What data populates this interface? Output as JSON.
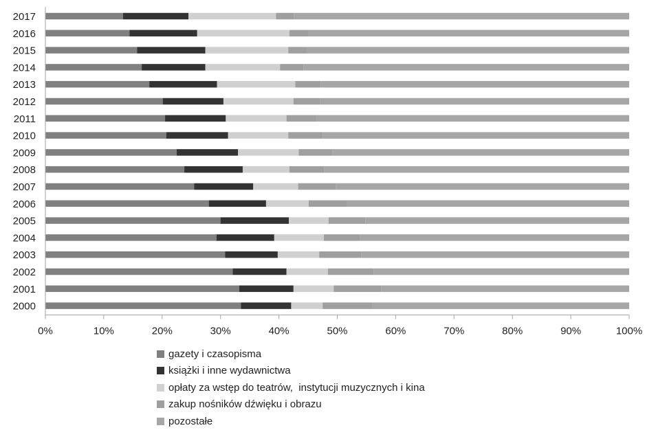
{
  "chart_data": {
    "type": "bar",
    "orientation": "horizontal",
    "stacked": "percent",
    "categories": [
      "2017",
      "2016",
      "2015",
      "2014",
      "2013",
      "2012",
      "2011",
      "2010",
      "2009",
      "2008",
      "2007",
      "2006",
      "2005",
      "2004",
      "2003",
      "2002",
      "2001",
      "2000"
    ],
    "series": [
      {
        "name": "gazety i czasopisma",
        "color": "#808080",
        "values": [
          13.3,
          14.4,
          15.7,
          16.5,
          17.8,
          20.1,
          20.5,
          20.7,
          22.5,
          23.8,
          25.5,
          28.0,
          30.0,
          29.3,
          30.8,
          32.1,
          33.2,
          33.5
        ]
      },
      {
        "name": "książki i inne wydawnictwa",
        "color": "#333333",
        "values": [
          11.2,
          11.6,
          11.7,
          10.9,
          11.6,
          10.4,
          10.4,
          10.6,
          10.5,
          10.0,
          10.1,
          9.8,
          11.7,
          9.9,
          9.0,
          9.2,
          9.3,
          8.6
        ]
      },
      {
        "name": "opłaty za wstęp do teatrów,  instytucji muzycznych i kina",
        "color": "#d0d0d0",
        "values": [
          15.0,
          15.8,
          14.2,
          12.8,
          13.4,
          12.0,
          10.4,
          10.3,
          10.4,
          8.0,
          7.7,
          7.3,
          6.8,
          8.5,
          7.1,
          7.1,
          6.9,
          5.4
        ]
      },
      {
        "name": "zakup nośników dźwięku i obrazu",
        "color": "#9f9f9f",
        "values": [
          3.1,
          3.3,
          3.1,
          4.0,
          4.4,
          4.6,
          5.1,
          5.9,
          5.8,
          6.0,
          6.5,
          6.6,
          6.3,
          6.2,
          7.2,
          7.8,
          8.1,
          8.5
        ]
      },
      {
        "name": "pozostałe",
        "color": "#a6a6a6",
        "values": [
          57.4,
          54.9,
          55.3,
          55.8,
          52.8,
          52.9,
          53.6,
          52.5,
          50.8,
          52.2,
          50.2,
          48.3,
          45.2,
          46.1,
          45.9,
          43.8,
          42.5,
          44.0
        ]
      }
    ],
    "xticks": [
      "0%",
      "10%",
      "20%",
      "30%",
      "40%",
      "50%",
      "60%",
      "70%",
      "80%",
      "90%",
      "100%"
    ],
    "xlim": [
      0,
      100
    ],
    "legend_position": "bottom",
    "grid": false
  }
}
